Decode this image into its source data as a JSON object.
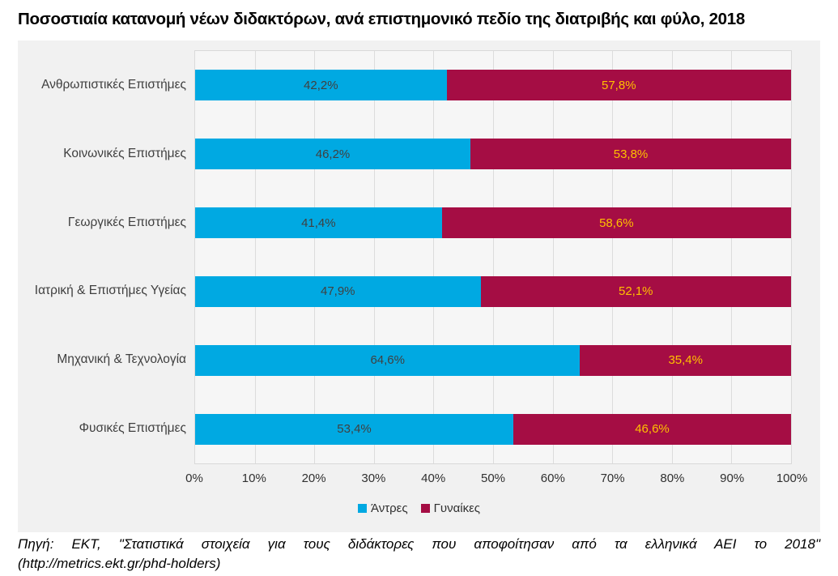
{
  "title": "Ποσοστιαία κατανομή νέων διδακτόρων, ανά επιστημονικό πεδίο της διατριβής και φύλο, 2018",
  "chart_data": {
    "type": "bar",
    "orientation": "horizontal",
    "stacked": true,
    "title": "Ποσοστιαία κατανομή νέων διδακτόρων, ανά επιστημονικό πεδίο της διατριβής και φύλο, 2018",
    "categories": [
      "Ανθρωπιστικές Επιστήμες",
      "Κοινωνικές Επιστήμες",
      "Γεωργικές Επιστήμες",
      "Ιατρική & Επιστήμες Υγείας",
      "Μηχανική & Τεχνολογία",
      "Φυσικές Επιστήμες"
    ],
    "series": [
      {
        "name": "Άντρες",
        "color": "#00A9E2",
        "label_color": "#404040",
        "values": [
          42.2,
          46.2,
          41.4,
          47.9,
          64.6,
          53.4
        ],
        "labels": [
          "42,2%",
          "46,2%",
          "41,4%",
          "47,9%",
          "64,6%",
          "53,4%"
        ]
      },
      {
        "name": "Γυναίκες",
        "color": "#A50D44",
        "label_color": "#FFC000",
        "values": [
          57.8,
          53.8,
          58.6,
          52.1,
          35.4,
          46.6
        ],
        "labels": [
          "57,8%",
          "53,8%",
          "58,6%",
          "52,1%",
          "35,4%",
          "46,6%"
        ]
      }
    ],
    "x_ticks": [
      "0%",
      "10%",
      "20%",
      "30%",
      "40%",
      "50%",
      "60%",
      "70%",
      "80%",
      "90%",
      "100%"
    ],
    "xlim": [
      0,
      100
    ],
    "grid": true,
    "legend_position": "bottom",
    "background_color": "#F1F1F1"
  },
  "footer": {
    "line1": "Πηγή: ΕΚΤ, \"Στατιστικά στοιχεία για τους διδάκτορες που αποφοίτησαν από τα ελληνικά ΑΕΙ το 2018\"",
    "line2": "(http://metrics.ekt.gr/phd-holders)"
  }
}
